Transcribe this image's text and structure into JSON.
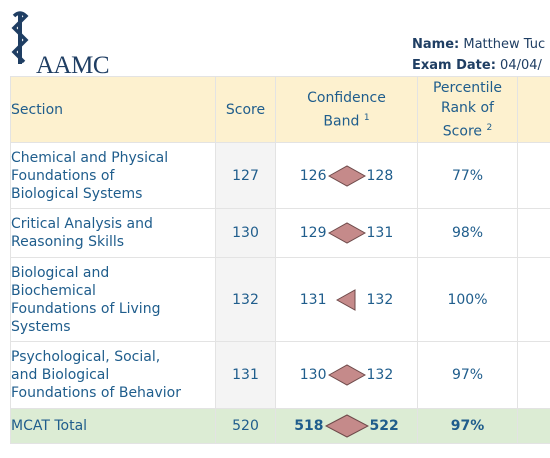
{
  "logo": {
    "text": "AAMC",
    "icon": "caduceus-icon"
  },
  "exam_info": {
    "name_label": "Name:",
    "name_value": "Matthew Tuc",
    "date_label": "Exam Date:",
    "date_value": "04/04/"
  },
  "table": {
    "headers": {
      "section": "Section",
      "score": "Score",
      "band_line1": "Confidence",
      "band_line2": "Band",
      "band_note": "1",
      "pct_line1": "Percentile",
      "pct_line2": "Rank of",
      "pct_line3": "Score",
      "pct_note": "2"
    },
    "rows": [
      {
        "section_lines": [
          "Chemical and Physical",
          "Foundations of",
          "Biological Systems"
        ],
        "score": "127",
        "band_low": "126",
        "band_high": "128",
        "percentile": "77%",
        "marker": "diamond"
      },
      {
        "section_lines": [
          "Critical Analysis and",
          "Reasoning Skills"
        ],
        "score": "130",
        "band_low": "129",
        "band_high": "131",
        "percentile": "98%",
        "marker": "diamond"
      },
      {
        "section_lines": [
          "Biological and",
          "Biochemical",
          "Foundations of Living",
          "Systems"
        ],
        "score": "132",
        "band_low": "131",
        "band_high": "132",
        "percentile": "100%",
        "marker": "half-diamond"
      },
      {
        "section_lines": [
          "Psychological, Social,",
          "and Biological",
          "Foundations of Behavior"
        ],
        "score": "131",
        "band_low": "130",
        "band_high": "132",
        "percentile": "97%",
        "marker": "diamond"
      }
    ],
    "total": {
      "section": "MCAT Total",
      "score": "520",
      "band_low": "518",
      "band_high": "522",
      "percentile": "97%"
    }
  },
  "colors": {
    "header_bg": "#fdf1cf",
    "total_bg": "#dcecd4",
    "text": "#1f5d8c",
    "marker_fill": "#c58a8a"
  }
}
